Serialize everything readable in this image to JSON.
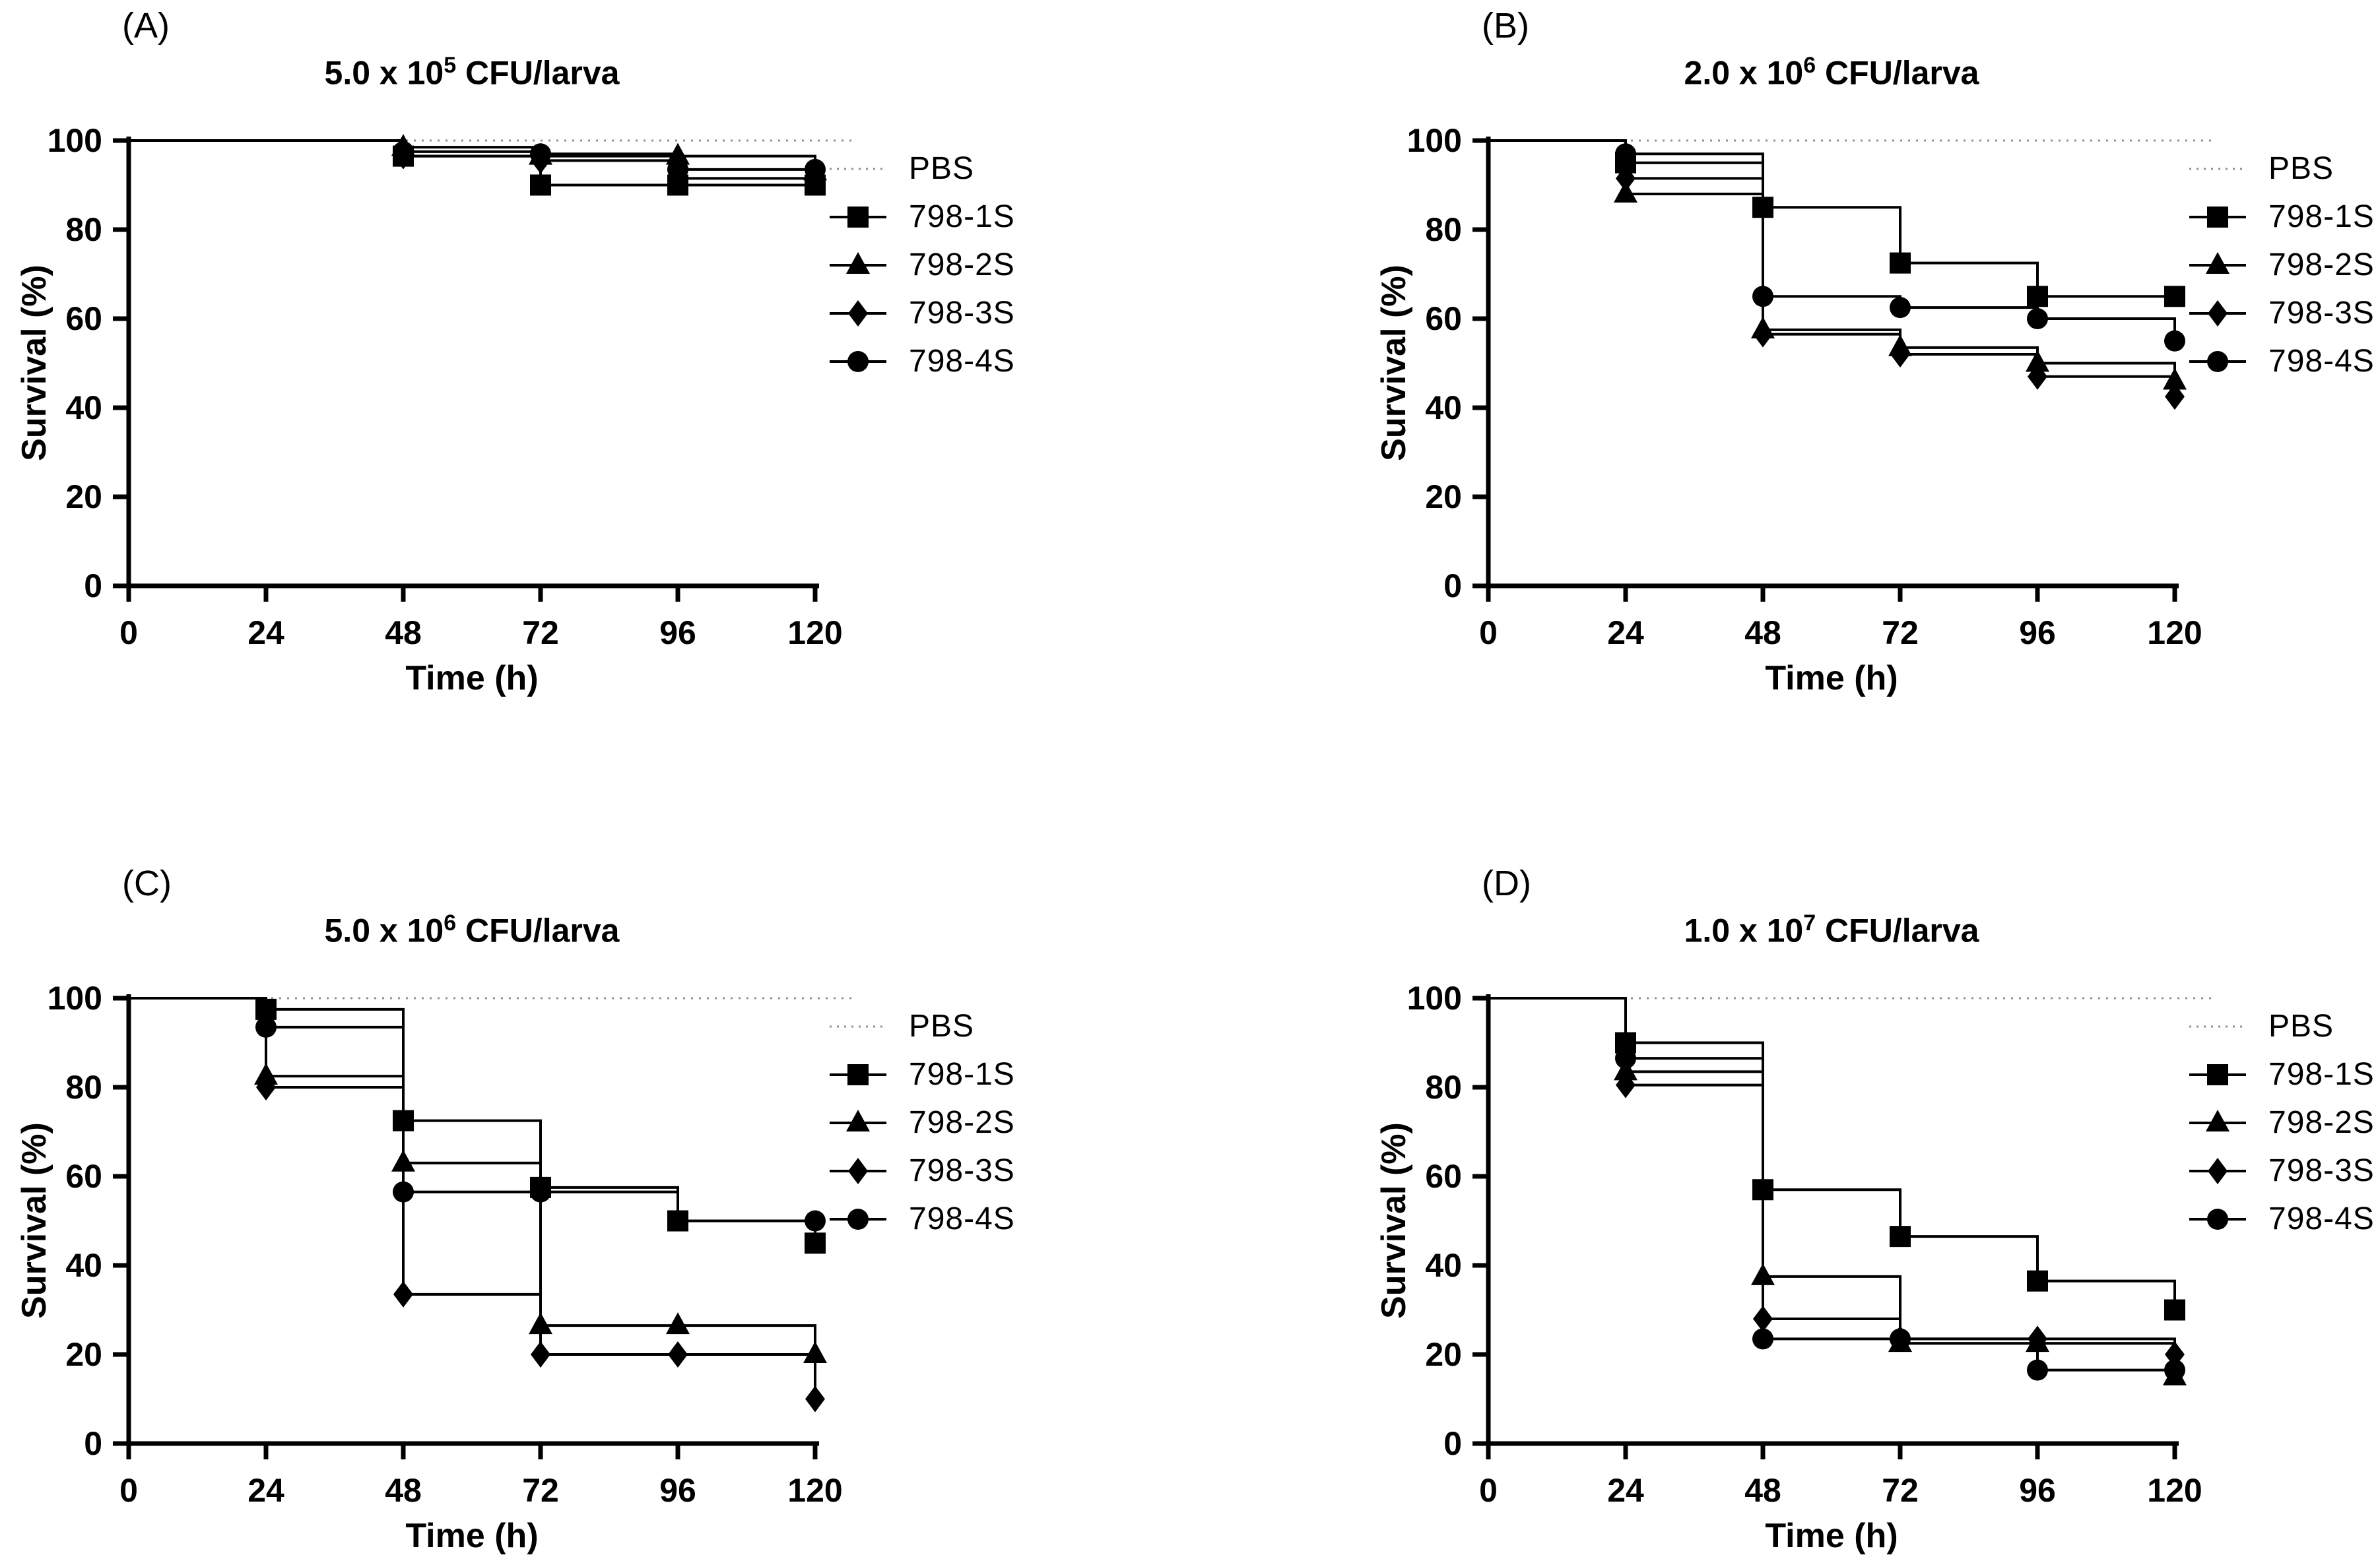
{
  "figure": {
    "ylabel": "Survival (%)",
    "xlabel": "Time (h)",
    "yticks": [
      0,
      20,
      40,
      60,
      80,
      100
    ],
    "xticks": [
      0,
      24,
      48,
      72,
      96,
      120
    ],
    "xlim": [
      0,
      120
    ],
    "ylim": [
      0,
      100
    ],
    "grid": "off",
    "legend_position": "right",
    "colors": {
      "series_line": "#000000",
      "pbs_dotted": "#8f8f8f",
      "background": "#ffffff",
      "text": "#000000"
    }
  },
  "legend": {
    "entries": [
      {
        "label": "PBS",
        "marker": "none",
        "line": "dotted"
      },
      {
        "label": "798-1S",
        "marker": "square",
        "line": "solid"
      },
      {
        "label": "798-2S",
        "marker": "triangle",
        "line": "solid"
      },
      {
        "label": "798-3S",
        "marker": "diamond",
        "line": "solid"
      },
      {
        "label": "798-4S",
        "marker": "circle",
        "line": "solid"
      }
    ]
  },
  "chart_data": [
    {
      "type": "line",
      "panel_letter": "(A)",
      "title": {
        "base": "5.0 x 10",
        "exponent": "5",
        "suffix": " CFU/larva"
      },
      "xlabel": "Time (h)",
      "ylabel": "Survival (%)",
      "x": [
        0,
        24,
        48,
        72,
        96,
        120
      ],
      "xlim": [
        0,
        120
      ],
      "ylim": [
        0,
        100
      ],
      "series": [
        {
          "name": "PBS",
          "marker": "none",
          "line": "dotted",
          "values": [
            100,
            100,
            100,
            100,
            100,
            100
          ]
        },
        {
          "name": "798-1S",
          "marker": "square",
          "line": "solid",
          "values": [
            100,
            100,
            96.5,
            90,
            90,
            90
          ]
        },
        {
          "name": "798-2S",
          "marker": "triangle",
          "line": "solid",
          "values": [
            100,
            100,
            98.5,
            96.5,
            96.5,
            93
          ]
        },
        {
          "name": "798-3S",
          "marker": "diamond",
          "line": "solid",
          "values": [
            100,
            100,
            96.5,
            95.5,
            91.5,
            91.5
          ]
        },
        {
          "name": "798-4S",
          "marker": "circle",
          "line": "solid",
          "values": [
            100,
            100,
            97.5,
            97,
            93.5,
            93.5
          ]
        }
      ]
    },
    {
      "type": "line",
      "panel_letter": "(B)",
      "title": {
        "base": "2.0 x 10",
        "exponent": "6",
        "suffix": " CFU/larva"
      },
      "xlabel": "Time (h)",
      "ylabel": "Survival (%)",
      "x": [
        0,
        24,
        48,
        72,
        96,
        120
      ],
      "xlim": [
        0,
        120
      ],
      "ylim": [
        0,
        100
      ],
      "series": [
        {
          "name": "PBS",
          "marker": "none",
          "line": "dotted",
          "values": [
            100,
            100,
            100,
            100,
            100,
            100
          ]
        },
        {
          "name": "798-1S",
          "marker": "square",
          "line": "solid",
          "values": [
            100,
            95,
            85,
            72.5,
            65,
            65
          ]
        },
        {
          "name": "798-2S",
          "marker": "triangle",
          "line": "solid",
          "values": [
            100,
            88,
            57.5,
            53.5,
            50,
            46
          ]
        },
        {
          "name": "798-3S",
          "marker": "diamond",
          "line": "solid",
          "values": [
            100,
            91.5,
            56.5,
            52,
            47,
            42.5
          ]
        },
        {
          "name": "798-4S",
          "marker": "circle",
          "line": "solid",
          "values": [
            100,
            97,
            65,
            62.5,
            60,
            55
          ]
        }
      ]
    },
    {
      "type": "line",
      "panel_letter": "(C)",
      "title": {
        "base": "5.0 x 10",
        "exponent": "6",
        "suffix": " CFU/larva"
      },
      "xlabel": "Time (h)",
      "ylabel": "Survival (%)",
      "x": [
        0,
        24,
        48,
        72,
        96,
        120
      ],
      "xlim": [
        0,
        120
      ],
      "ylim": [
        0,
        100
      ],
      "series": [
        {
          "name": "PBS",
          "marker": "none",
          "line": "dotted",
          "values": [
            100,
            100,
            100,
            100,
            100,
            100
          ]
        },
        {
          "name": "798-1S",
          "marker": "square",
          "line": "solid",
          "values": [
            100,
            97.5,
            72.5,
            57.5,
            50,
            45
          ]
        },
        {
          "name": "798-2S",
          "marker": "triangle",
          "line": "solid",
          "values": [
            100,
            82.5,
            63,
            26.5,
            26.5,
            20
          ]
        },
        {
          "name": "798-3S",
          "marker": "diamond",
          "line": "solid",
          "values": [
            100,
            80,
            33.5,
            20,
            20,
            10
          ]
        },
        {
          "name": "798-4S",
          "marker": "circle",
          "line": "solid",
          "values": [
            100,
            93.5,
            56.5,
            56.5,
            50,
            50
          ]
        }
      ]
    },
    {
      "type": "line",
      "panel_letter": "(D)",
      "title": {
        "base": "1.0 x 10",
        "exponent": "7",
        "suffix": " CFU/larva"
      },
      "xlabel": "Time (h)",
      "ylabel": "Survival (%)",
      "x": [
        0,
        24,
        48,
        72,
        96,
        120
      ],
      "xlim": [
        0,
        120
      ],
      "ylim": [
        0,
        100
      ],
      "series": [
        {
          "name": "PBS",
          "marker": "none",
          "line": "dotted",
          "values": [
            100,
            100,
            100,
            100,
            100,
            100
          ]
        },
        {
          "name": "798-1S",
          "marker": "square",
          "line": "solid",
          "values": [
            100,
            90,
            57,
            46.5,
            36.5,
            30
          ]
        },
        {
          "name": "798-2S",
          "marker": "triangle",
          "line": "solid",
          "values": [
            100,
            83.5,
            37.5,
            22.5,
            22.5,
            15
          ]
        },
        {
          "name": "798-3S",
          "marker": "diamond",
          "line": "solid",
          "values": [
            100,
            80.5,
            28,
            23.5,
            23.5,
            20
          ]
        },
        {
          "name": "798-4S",
          "marker": "circle",
          "line": "solid",
          "values": [
            100,
            86.5,
            23.5,
            23.5,
            16.5,
            16.5
          ]
        }
      ]
    }
  ]
}
